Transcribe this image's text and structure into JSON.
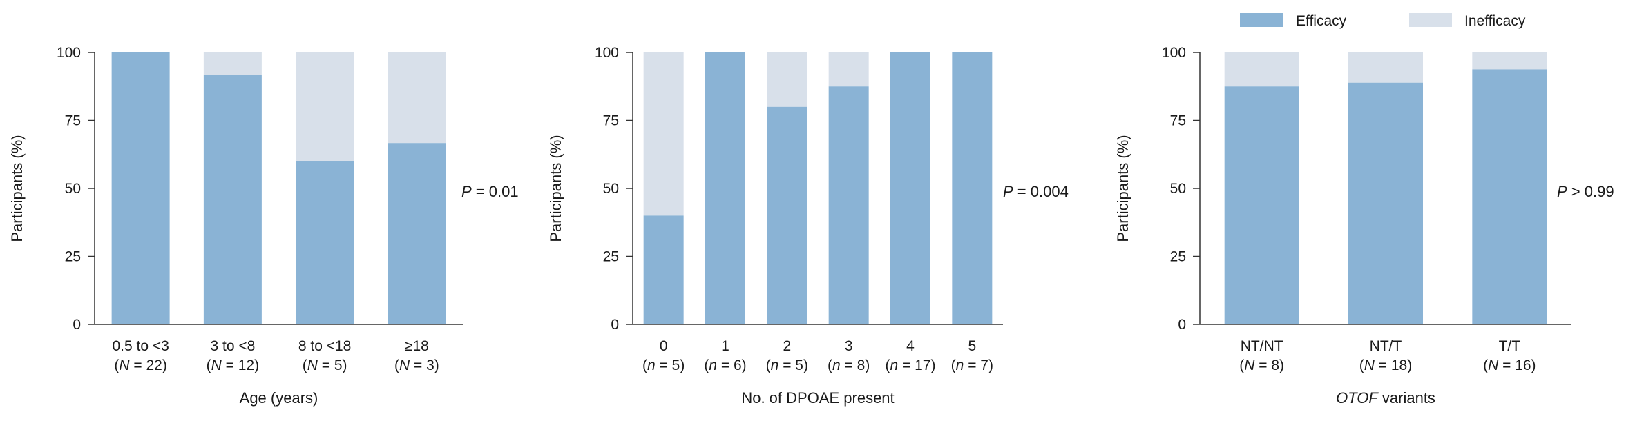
{
  "colors": {
    "efficacy": "#8ab3d5",
    "inefficacy": "#d8e0ea",
    "axis": "#333333"
  },
  "legend": {
    "efficacy_label": "Efficacy",
    "inefficacy_label": "Inefficacy"
  },
  "chart_data": [
    {
      "type": "bar",
      "stacked": true,
      "title": "",
      "xlabel": "Age (years)",
      "xlabel_italic_prefix": "",
      "ylabel": "Participants (%)",
      "ylim": [
        0,
        100
      ],
      "yticks": [
        0,
        25,
        50,
        75,
        100
      ],
      "categories": [
        "0.5 to <3",
        "3 to <8",
        "8 to <18",
        "≥18"
      ],
      "n_symbol": "N",
      "n_values": [
        22,
        12,
        5,
        3
      ],
      "series": [
        {
          "name": "Efficacy",
          "values": [
            100,
            91.7,
            60,
            66.7
          ]
        },
        {
          "name": "Inefficacy",
          "values": [
            0,
            8.3,
            40,
            33.3
          ]
        }
      ],
      "p_symbol": "P",
      "p_text": " = 0.01"
    },
    {
      "type": "bar",
      "stacked": true,
      "title": "",
      "xlabel": "No. of DPOAE present",
      "xlabel_italic_prefix": "",
      "ylabel": "Participants (%)",
      "ylim": [
        0,
        100
      ],
      "yticks": [
        0,
        25,
        50,
        75,
        100
      ],
      "categories": [
        "0",
        "1",
        "2",
        "3",
        "4",
        "5"
      ],
      "n_symbol": "n",
      "n_values": [
        5,
        6,
        5,
        8,
        17,
        7
      ],
      "series": [
        {
          "name": "Efficacy",
          "values": [
            40,
            100,
            80,
            87.5,
            100,
            100
          ]
        },
        {
          "name": "Inefficacy",
          "values": [
            60,
            0,
            20,
            12.5,
            0,
            0
          ]
        }
      ],
      "p_symbol": "P",
      "p_text": " = 0.004"
    },
    {
      "type": "bar",
      "stacked": true,
      "title": "",
      "xlabel": " variants",
      "xlabel_italic_prefix": "OTOF",
      "ylabel": "Participants (%)",
      "ylim": [
        0,
        100
      ],
      "yticks": [
        0,
        25,
        50,
        75,
        100
      ],
      "categories": [
        "NT/NT",
        "NT/T",
        "T/T"
      ],
      "n_symbol": "N",
      "n_values": [
        8,
        18,
        16
      ],
      "series": [
        {
          "name": "Efficacy",
          "values": [
            87.5,
            88.9,
            93.8
          ]
        },
        {
          "name": "Inefficacy",
          "values": [
            12.5,
            11.1,
            6.2
          ]
        }
      ],
      "p_symbol": "P",
      "p_text": " > 0.99"
    }
  ]
}
